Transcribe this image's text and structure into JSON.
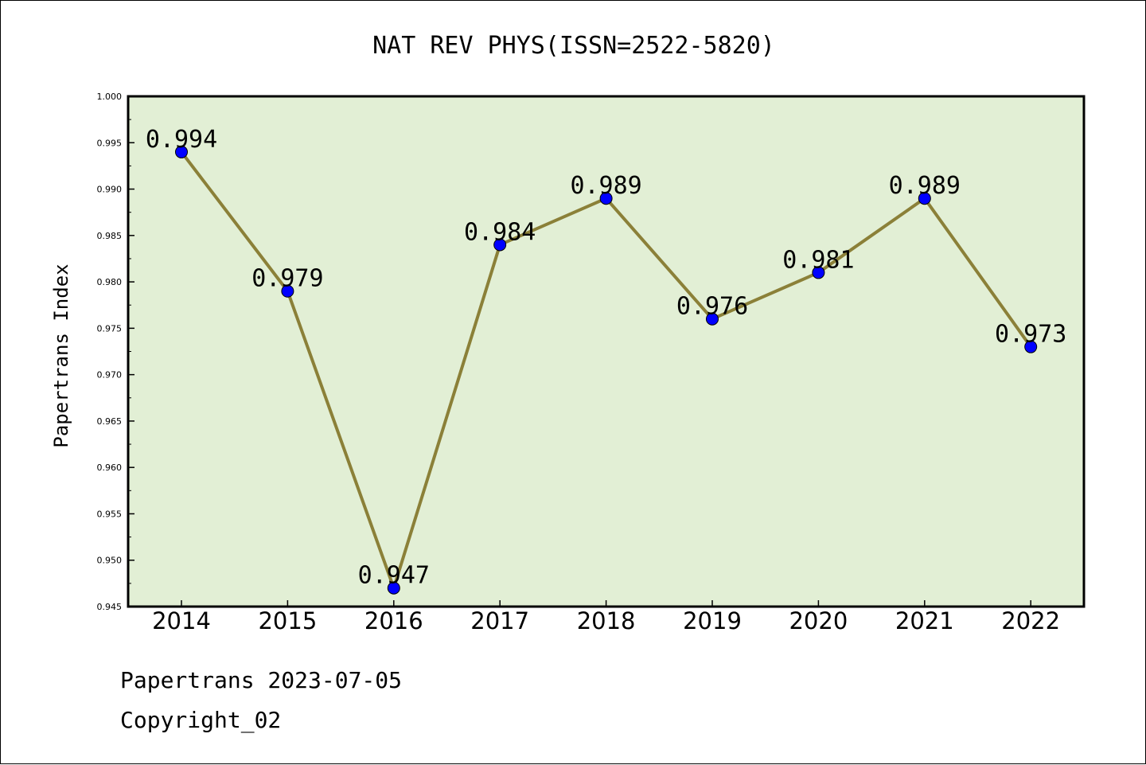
{
  "chart_data": {
    "type": "line",
    "title": "NAT REV PHYS(ISSN=2522-5820)",
    "xlabel": "",
    "ylabel": "Papertrans Index",
    "categories": [
      "2014",
      "2015",
      "2016",
      "2017",
      "2018",
      "2019",
      "2020",
      "2021",
      "2022"
    ],
    "series": [
      {
        "values": [
          0.994,
          0.979,
          0.947,
          0.984,
          0.989,
          0.976,
          0.981,
          0.989,
          0.973
        ],
        "data_labels": [
          "0.994",
          "0.979",
          "0.947",
          "0.984",
          "0.989",
          "0.976",
          "0.981",
          "0.989",
          "0.973"
        ],
        "line_color": "#8B8038",
        "marker_color": "#0000FF"
      }
    ],
    "ylim": [
      0.945,
      1.0
    ],
    "yticks": [
      "0.945",
      "0.950",
      "0.955",
      "0.960",
      "0.965",
      "0.970",
      "0.975",
      "0.980",
      "0.985",
      "0.990",
      "0.995",
      "1.000"
    ],
    "plot_background": "#E2EFD5",
    "grid": false,
    "legend": "none"
  },
  "footer": {
    "line1": "Papertrans 2023-07-05",
    "line2": "Copyright_02"
  }
}
